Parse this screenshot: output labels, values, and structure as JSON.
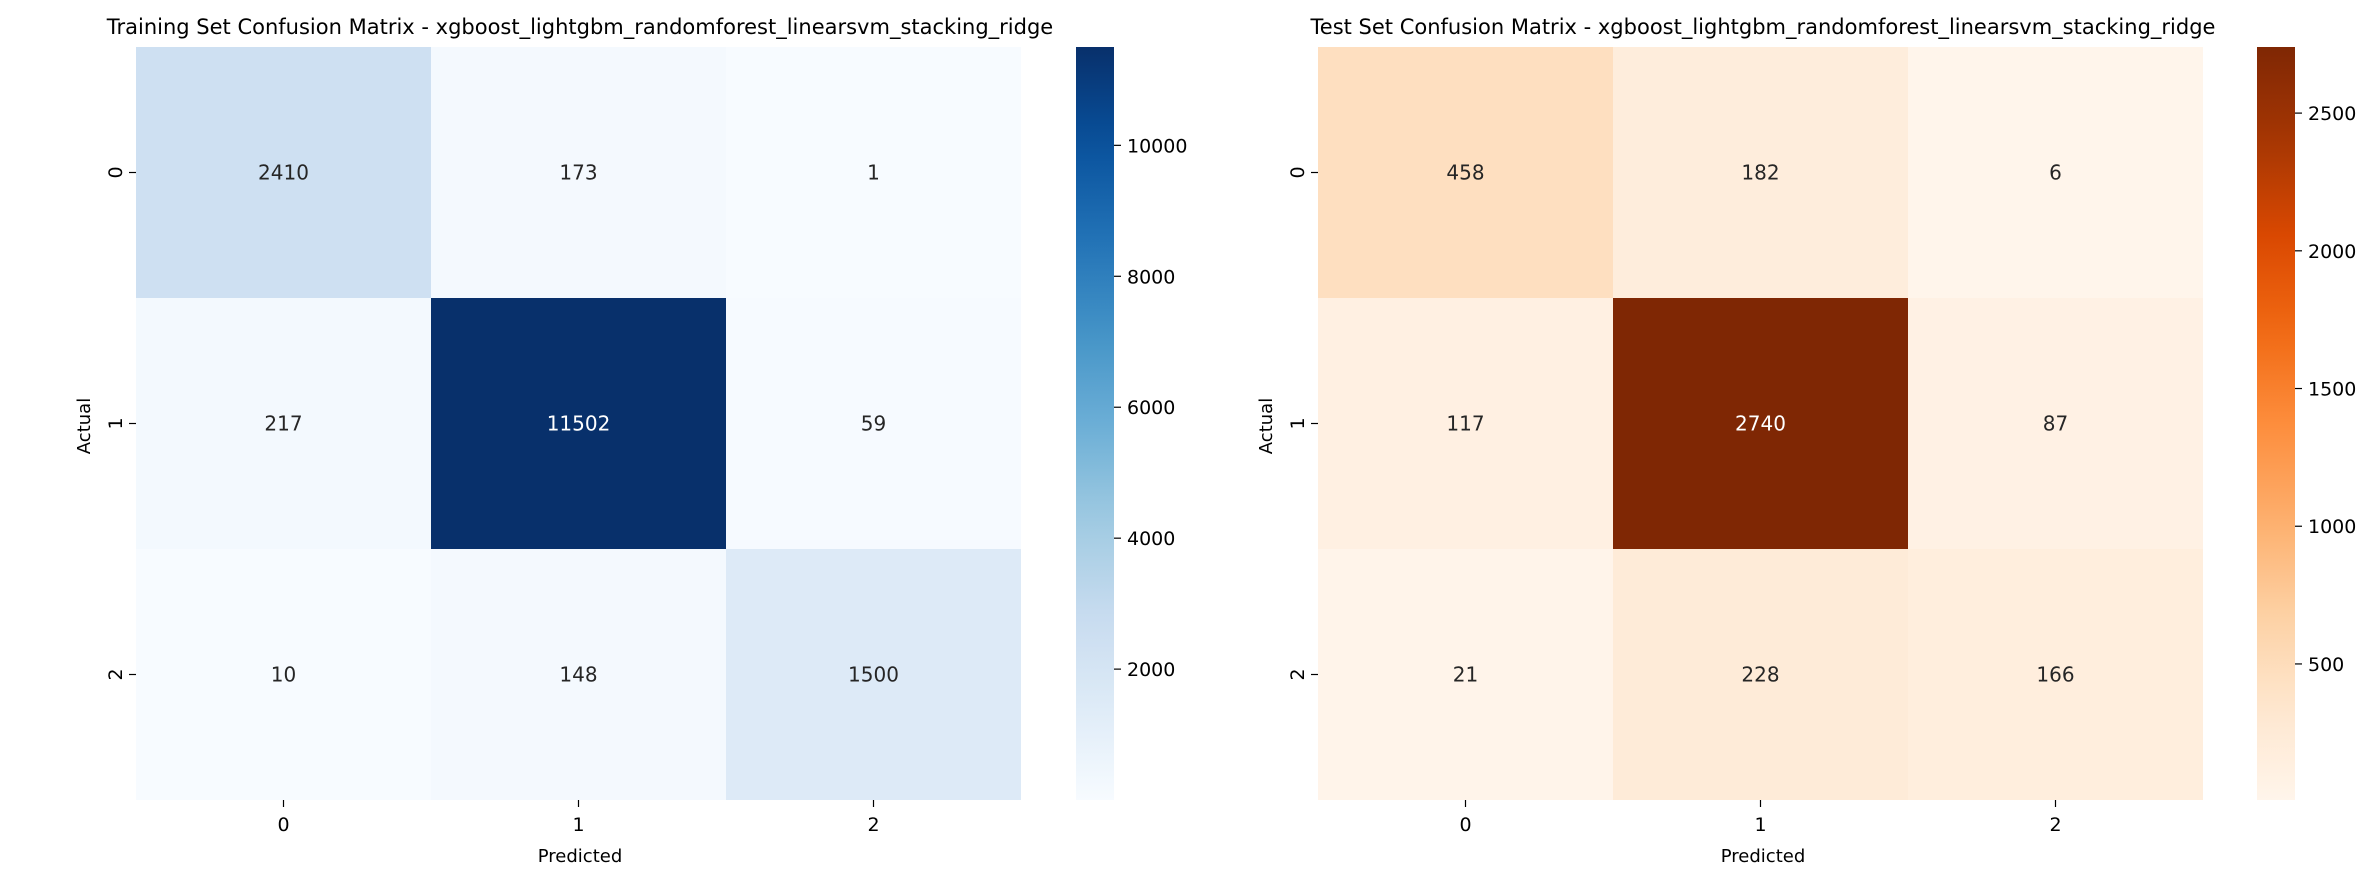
{
  "chart_data": [
    {
      "type": "heatmap",
      "title": "Training Set Confusion Matrix - xgboost_lightgbm_randomforest_linearsvm_stacking_ridge",
      "xlabel": "Predicted",
      "ylabel": "Actual",
      "x_categories": [
        "0",
        "1",
        "2"
      ],
      "y_categories": [
        "0",
        "1",
        "2"
      ],
      "values": [
        [
          2410,
          173,
          1
        ],
        [
          217,
          11502,
          59
        ],
        [
          10,
          148,
          1500
        ]
      ],
      "colormap": "Blues",
      "colorbar": {
        "range": [
          1,
          11502
        ],
        "ticks": [
          2000,
          4000,
          6000,
          8000,
          10000
        ]
      }
    },
    {
      "type": "heatmap",
      "title": "Test Set Confusion Matrix - xgboost_lightgbm_randomforest_linearsvm_stacking_ridge",
      "xlabel": "Predicted",
      "ylabel": "Actual",
      "x_categories": [
        "0",
        "1",
        "2"
      ],
      "y_categories": [
        "0",
        "1",
        "2"
      ],
      "values": [
        [
          458,
          182,
          6
        ],
        [
          117,
          2740,
          87
        ],
        [
          21,
          228,
          166
        ]
      ],
      "colormap": "Oranges",
      "colorbar": {
        "range": [
          6,
          2740
        ],
        "ticks": [
          500,
          1000,
          1500,
          2000,
          2500
        ]
      }
    }
  ]
}
